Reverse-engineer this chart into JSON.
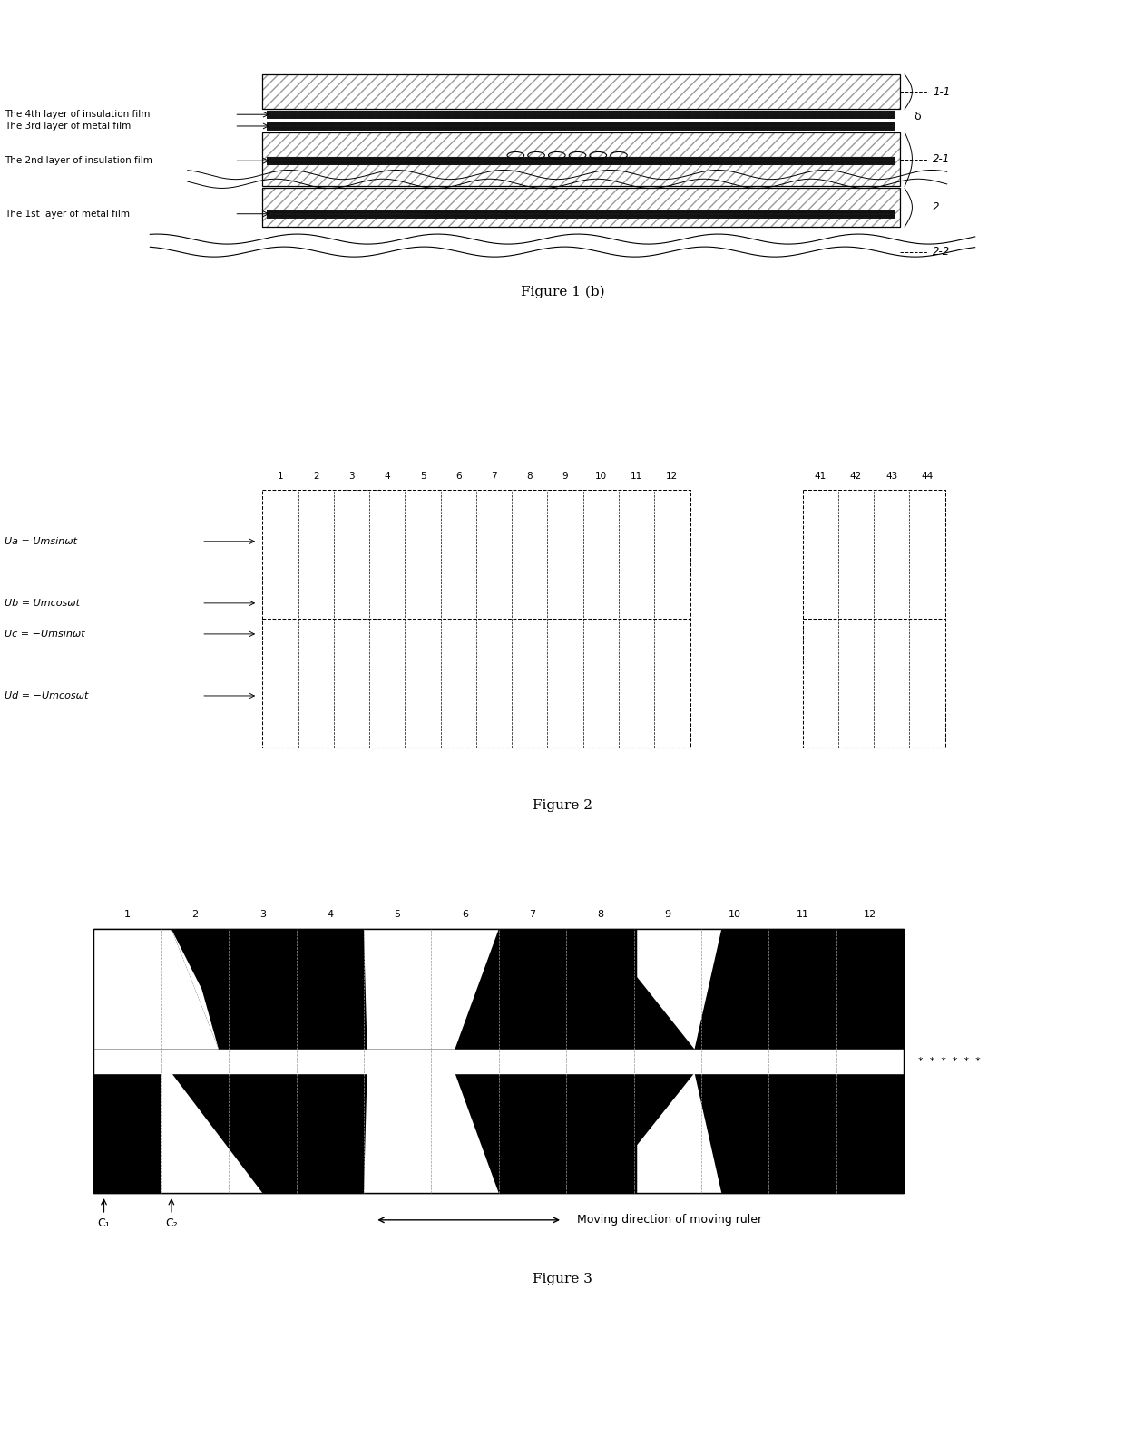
{
  "fig1_labels": [
    "The 4th layer of insulation film",
    "The 3rd layer of metal film",
    "The 2nd layer of insulation film",
    "The 1st layer of metal film"
  ],
  "fig1_caption": "Figure 1 (b)",
  "fig2_caption": "Figure 2",
  "fig3_caption": "Figure 3",
  "fig2_numbers_left": [
    "1",
    "2",
    "3",
    "4",
    "5",
    "6",
    "7",
    "8",
    "9",
    "10",
    "11",
    "12"
  ],
  "fig2_numbers_right": [
    "41",
    "42",
    "43",
    "44"
  ],
  "fig2_labels": [
    "Ua = Umsinωt",
    "Ub = Umcosωt",
    "Uc = −Umsinωt",
    "Ud = −Umcosωt"
  ],
  "fig3_numbers": [
    "1",
    "2",
    "3",
    "4",
    "5",
    "6",
    "7",
    "8",
    "9",
    "10",
    "11",
    "12"
  ],
  "fig3_arrow_label": "Moving direction of moving ruler",
  "fig3_c1": "C₁",
  "fig3_c2": "C₂",
  "bg_color": "#ffffff",
  "line_color": "#000000"
}
